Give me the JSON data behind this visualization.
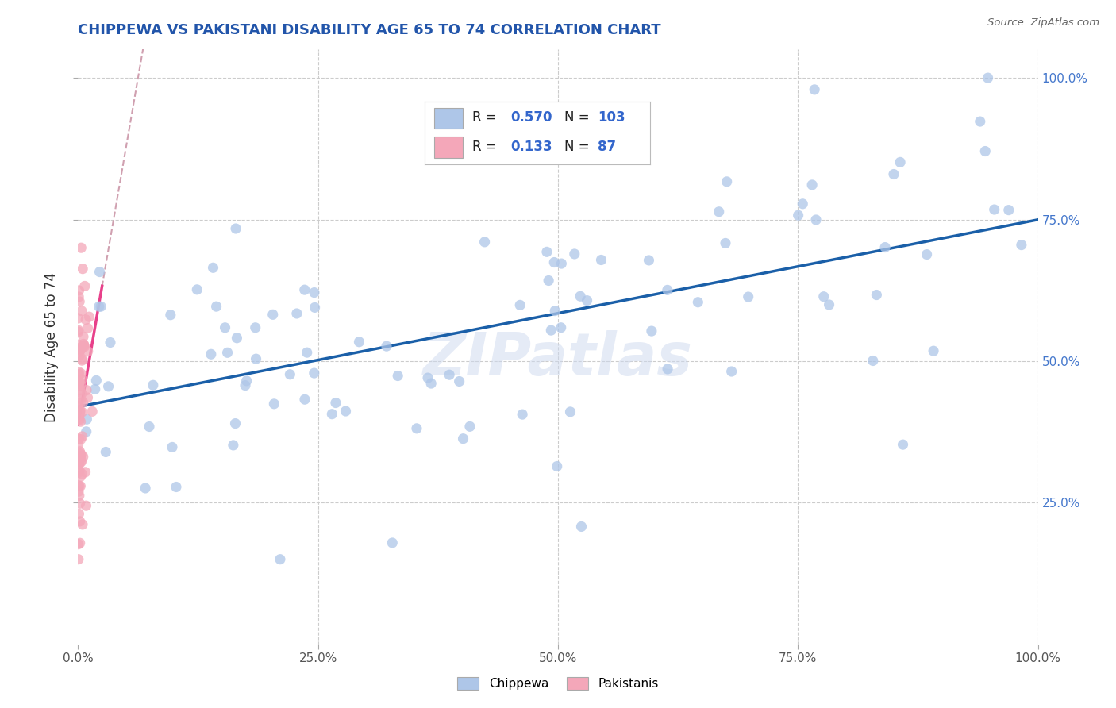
{
  "title": "CHIPPEWA VS PAKISTANI DISABILITY AGE 65 TO 74 CORRELATION CHART",
  "source_text": "Source: ZipAtlas.com",
  "ylabel": "Disability Age 65 to 74",
  "xlim": [
    0.0,
    1.0
  ],
  "ylim": [
    0.0,
    1.05
  ],
  "xtick_labels": [
    "0.0%",
    "25.0%",
    "50.0%",
    "75.0%",
    "100.0%"
  ],
  "xtick_positions": [
    0.0,
    0.25,
    0.5,
    0.75,
    1.0
  ],
  "ytick_labels": [
    "25.0%",
    "50.0%",
    "75.0%",
    "100.0%"
  ],
  "ytick_positions": [
    0.25,
    0.5,
    0.75,
    1.0
  ],
  "chippewa_color": "#aec6e8",
  "pakistani_color": "#f4a7b9",
  "chippewa_line_color": "#1a5fa8",
  "pakistani_line_color": "#e8408a",
  "pakistani_dash_color": "#d0a0b0",
  "R_chippewa": 0.57,
  "N_chippewa": 103,
  "R_pakistani": 0.133,
  "N_pakistani": 87,
  "legend_label_chippewa": "Chippewa",
  "legend_label_pakistani": "Pakistanis",
  "watermark": "ZIPatlas",
  "title_color": "#2255aa",
  "grid_color": "#cccccc",
  "tick_color_right": "#4477cc",
  "tick_color_bottom": "#555555",
  "background_color": "#ffffff",
  "legend_text_color_label": "#222222",
  "legend_text_color_value": "#3366cc"
}
